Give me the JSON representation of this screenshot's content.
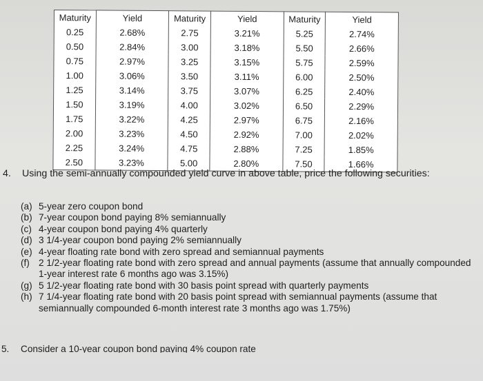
{
  "table": {
    "headers": [
      "Maturity",
      "Yield",
      "Maturity",
      "Yield",
      "Maturity",
      "Yield"
    ],
    "rows": [
      [
        "0.25",
        "2.68%",
        "2.75",
        "3.21%",
        "5.25",
        "2.74%"
      ],
      [
        "0.50",
        "2.84%",
        "3.00",
        "3.18%",
        "5.50",
        "2.66%"
      ],
      [
        "0.75",
        "2.97%",
        "3.25",
        "3.15%",
        "5.75",
        "2.59%"
      ],
      [
        "1.00",
        "3.06%",
        "3.50",
        "3.11%",
        "6.00",
        "2.50%"
      ],
      [
        "1.25",
        "3.14%",
        "3.75",
        "3.07%",
        "6.25",
        "2.40%"
      ],
      [
        "1.50",
        "3.19%",
        "4.00",
        "3.02%",
        "6.50",
        "2.29%"
      ],
      [
        "1.75",
        "3.22%",
        "4.25",
        "2.97%",
        "6.75",
        "2.16%"
      ],
      [
        "2.00",
        "3.23%",
        "4.50",
        "2.92%",
        "7.00",
        "2.02%"
      ],
      [
        "2.25",
        "3.24%",
        "4.75",
        "2.88%",
        "7.25",
        "1.85%"
      ],
      [
        "2.50",
        "3.23%",
        "5.00",
        "2.80%",
        "7.50",
        "1.66%"
      ]
    ]
  },
  "question": {
    "number": "4.",
    "text": "Using the semi-annually compounded yield curve in above table, price the following securities:",
    "parts": [
      {
        "letter": "(a)",
        "text": "5-year zero coupon bond"
      },
      {
        "letter": "(b)",
        "text": "7-year coupon bond paying 8% semiannually"
      },
      {
        "letter": "(c)",
        "text": "4-year coupon bond paying 4% quarterly"
      },
      {
        "letter": "(d)",
        "text": "3 1/4-year coupon bond paying 2% semiannually"
      },
      {
        "letter": "(e)",
        "text": "4-year floating rate bond with zero spread and semiannual payments"
      },
      {
        "letter": "(f)",
        "text": "2 1/2-year floating rate bond with zero spread and annual payments (assume that annually compounded 1-year interest rate 6 months ago was 3.15%)"
      },
      {
        "letter": "(g)",
        "text": "5 1/2-year floating rate bond with 30 basis point spread with quarterly payments"
      },
      {
        "letter": "(h)",
        "text": "7 1/4-year floating rate bond with 20 basis point spread with semiannual payments (assume that semiannually compounded 6-month interest rate 3 months ago was 1.75%)"
      }
    ]
  },
  "next_question": {
    "number": "5.",
    "text": "Consider a 10-year coupon bond paying 4% coupon rate"
  }
}
